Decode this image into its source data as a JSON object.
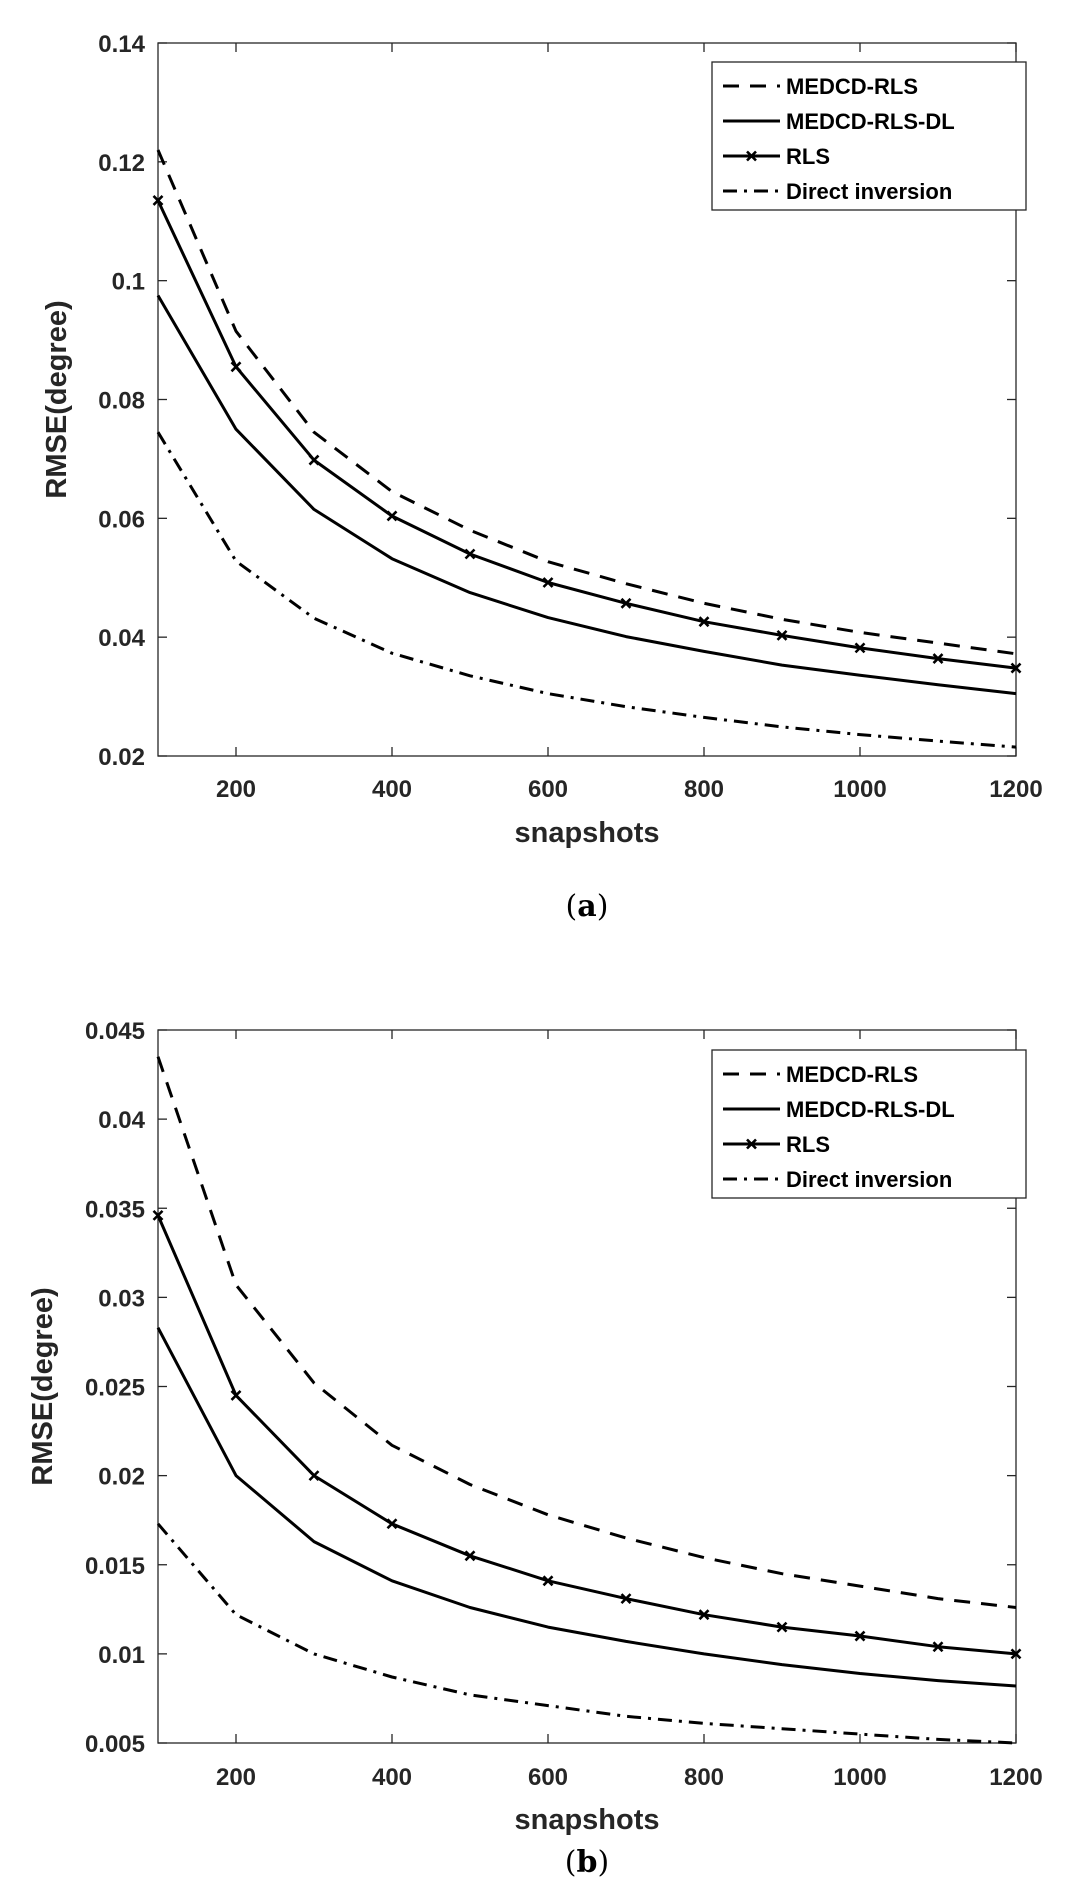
{
  "chart_data": [
    {
      "type": "line",
      "panel": "a",
      "caption_open": "(",
      "caption_letter": "a",
      "caption_close": ")",
      "xlabel": "snapshots",
      "ylabel": "RMSE(degree)",
      "xlim": [
        100,
        1200
      ],
      "ylim": [
        0.02,
        0.14
      ],
      "xticks": [
        200,
        400,
        600,
        800,
        1000,
        1200
      ],
      "xtick_labels": [
        "200",
        "400",
        "600",
        "800",
        "1000",
        "1200"
      ],
      "yticks": [
        0.02,
        0.04,
        0.06,
        0.08,
        0.1,
        0.12,
        0.14
      ],
      "ytick_labels": [
        "0.02",
        "0.04",
        "0.06",
        "0.08",
        "0.1",
        "0.12",
        "0.14"
      ],
      "legend_position": "top-right",
      "x": [
        100,
        200,
        300,
        400,
        500,
        600,
        700,
        800,
        900,
        1000,
        1100,
        1200
      ],
      "series": [
        {
          "name": "MEDCD-RLS",
          "style": "dashed",
          "values": [
            0.122,
            0.0915,
            0.0745,
            0.0645,
            0.058,
            0.0527,
            0.049,
            0.0457,
            0.043,
            0.0408,
            0.039,
            0.0372
          ]
        },
        {
          "name": "MEDCD-RLS-DL",
          "style": "solid",
          "values": [
            0.0975,
            0.075,
            0.0615,
            0.0532,
            0.0475,
            0.0433,
            0.0401,
            0.0376,
            0.0353,
            0.0336,
            0.032,
            0.0305
          ]
        },
        {
          "name": "RLS",
          "style": "solid-x",
          "values": [
            0.1135,
            0.0855,
            0.0698,
            0.0604,
            0.054,
            0.0492,
            0.0457,
            0.0426,
            0.0403,
            0.0382,
            0.0364,
            0.0348
          ]
        },
        {
          "name": "Direct inversion",
          "style": "dashdot",
          "values": [
            0.0745,
            0.0528,
            0.0432,
            0.0373,
            0.0335,
            0.0305,
            0.0283,
            0.0265,
            0.0249,
            0.0236,
            0.0225,
            0.0215
          ]
        }
      ]
    },
    {
      "type": "line",
      "panel": "b",
      "caption_open": "(",
      "caption_letter": "b",
      "caption_close": ")",
      "xlabel": "snapshots",
      "ylabel": "RMSE(degree)",
      "xlim": [
        100,
        1200
      ],
      "ylim": [
        0.005,
        0.045
      ],
      "xticks": [
        200,
        400,
        600,
        800,
        1000,
        1200
      ],
      "xtick_labels": [
        "200",
        "400",
        "600",
        "800",
        "1000",
        "1200"
      ],
      "yticks": [
        0.005,
        0.01,
        0.015,
        0.02,
        0.025,
        0.03,
        0.035,
        0.04,
        0.045
      ],
      "ytick_labels": [
        "0.005",
        "0.01",
        "0.015",
        "0.02",
        "0.025",
        "0.03",
        "0.035",
        "0.04",
        "0.045"
      ],
      "legend_position": "top-right",
      "x": [
        100,
        200,
        300,
        400,
        500,
        600,
        700,
        800,
        900,
        1000,
        1100,
        1200
      ],
      "series": [
        {
          "name": "MEDCD-RLS",
          "style": "dashed",
          "values": [
            0.0435,
            0.0307,
            0.0252,
            0.0217,
            0.0195,
            0.0178,
            0.0165,
            0.0154,
            0.0145,
            0.0138,
            0.0131,
            0.0126
          ]
        },
        {
          "name": "MEDCD-RLS-DL",
          "style": "solid",
          "values": [
            0.0283,
            0.02,
            0.0163,
            0.0141,
            0.0126,
            0.0115,
            0.0107,
            0.01,
            0.0094,
            0.0089,
            0.0085,
            0.0082
          ]
        },
        {
          "name": "RLS",
          "style": "solid-x",
          "values": [
            0.0346,
            0.0245,
            0.02,
            0.0173,
            0.0155,
            0.0141,
            0.0131,
            0.0122,
            0.0115,
            0.011,
            0.0104,
            0.01
          ]
        },
        {
          "name": "Direct inversion",
          "style": "dashdot",
          "values": [
            0.0173,
            0.0122,
            0.01,
            0.0087,
            0.0077,
            0.0071,
            0.0065,
            0.0061,
            0.0058,
            0.0055,
            0.0052,
            0.005
          ]
        }
      ]
    }
  ]
}
